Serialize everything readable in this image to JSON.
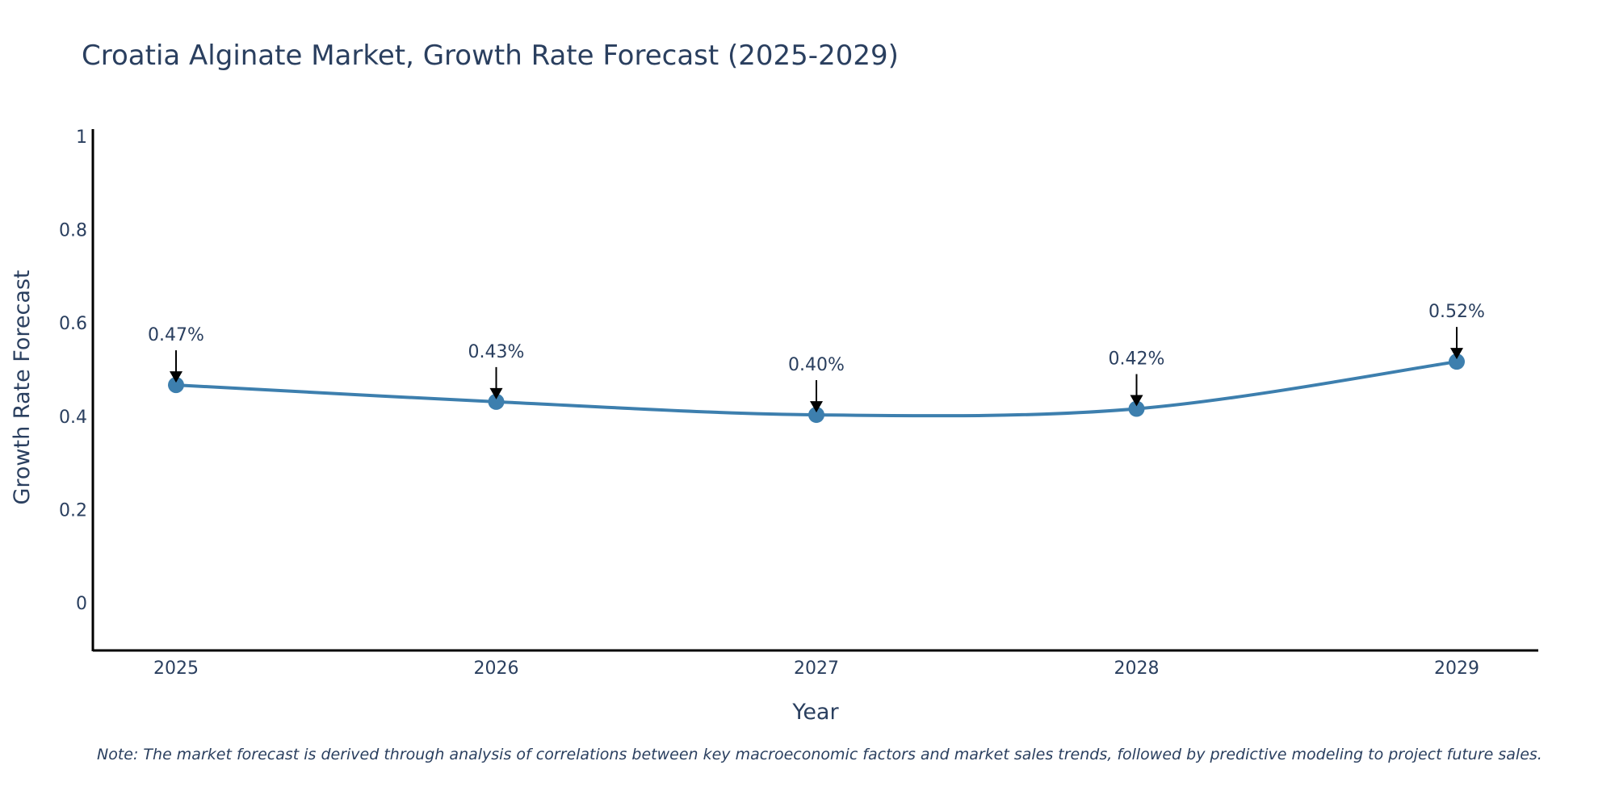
{
  "chart_data": {
    "type": "line",
    "title": "Croatia Alginate Market, Growth Rate Forecast (2025-2029)",
    "xlabel": "Year",
    "ylabel": "Growth Rate Forecast",
    "categories": [
      "2025",
      "2026",
      "2027",
      "2028",
      "2029"
    ],
    "values": [
      0.467,
      0.431,
      0.403,
      0.416,
      0.517
    ],
    "data_labels": [
      "0.47%",
      "0.43%",
      "0.40%",
      "0.42%",
      "0.52%"
    ],
    "yticks": [
      0,
      0.2,
      0.4,
      0.6,
      0.8,
      1
    ],
    "ytick_labels": [
      "0",
      "0.2",
      "0.4",
      "0.6",
      "0.8",
      "1"
    ],
    "ylim": [
      -0.1,
      1.01
    ],
    "grid": false,
    "line_shape": "spline",
    "colors": {
      "line": "#3d7fae",
      "marker": "#3d7fae",
      "axis": "#000000",
      "text": "#2a3f5f",
      "arrow": "#000000"
    }
  },
  "note": "Note: The market forecast is derived through analysis of correlations between key macroeconomic factors and market sales trends, followed by predictive modeling to project future sales."
}
